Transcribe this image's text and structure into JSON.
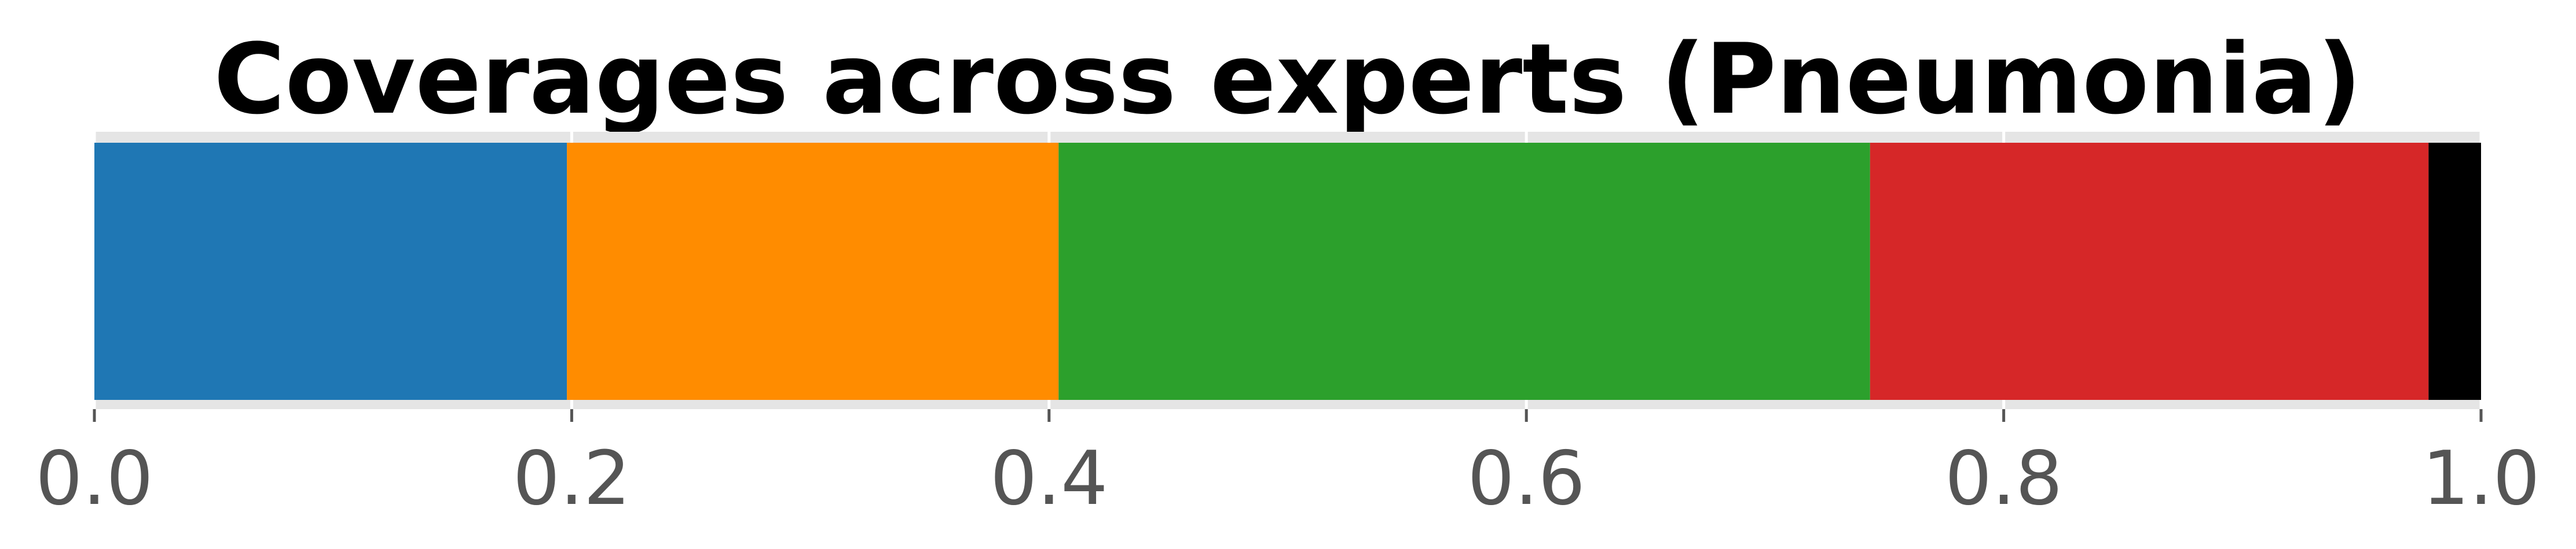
{
  "chart_data": {
    "type": "bar",
    "orientation": "horizontal-stacked",
    "title": "Coverages across experts (Pneumonia)",
    "xlabel": "",
    "ylabel": "",
    "xlim": [
      0.0,
      1.0
    ],
    "xticks": [
      "0.0",
      "0.2",
      "0.4",
      "0.6",
      "0.8",
      "1.0"
    ],
    "grid": true,
    "segments": [
      {
        "start": 0.0,
        "end": 0.198,
        "color": "#1f77b4"
      },
      {
        "start": 0.198,
        "end": 0.404,
        "color": "#ff8c00"
      },
      {
        "start": 0.404,
        "end": 0.744,
        "color": "#2ca02c"
      },
      {
        "start": 0.744,
        "end": 0.978,
        "color": "#d62728"
      },
      {
        "start": 0.978,
        "end": 1.0,
        "color": "#000000"
      }
    ]
  }
}
